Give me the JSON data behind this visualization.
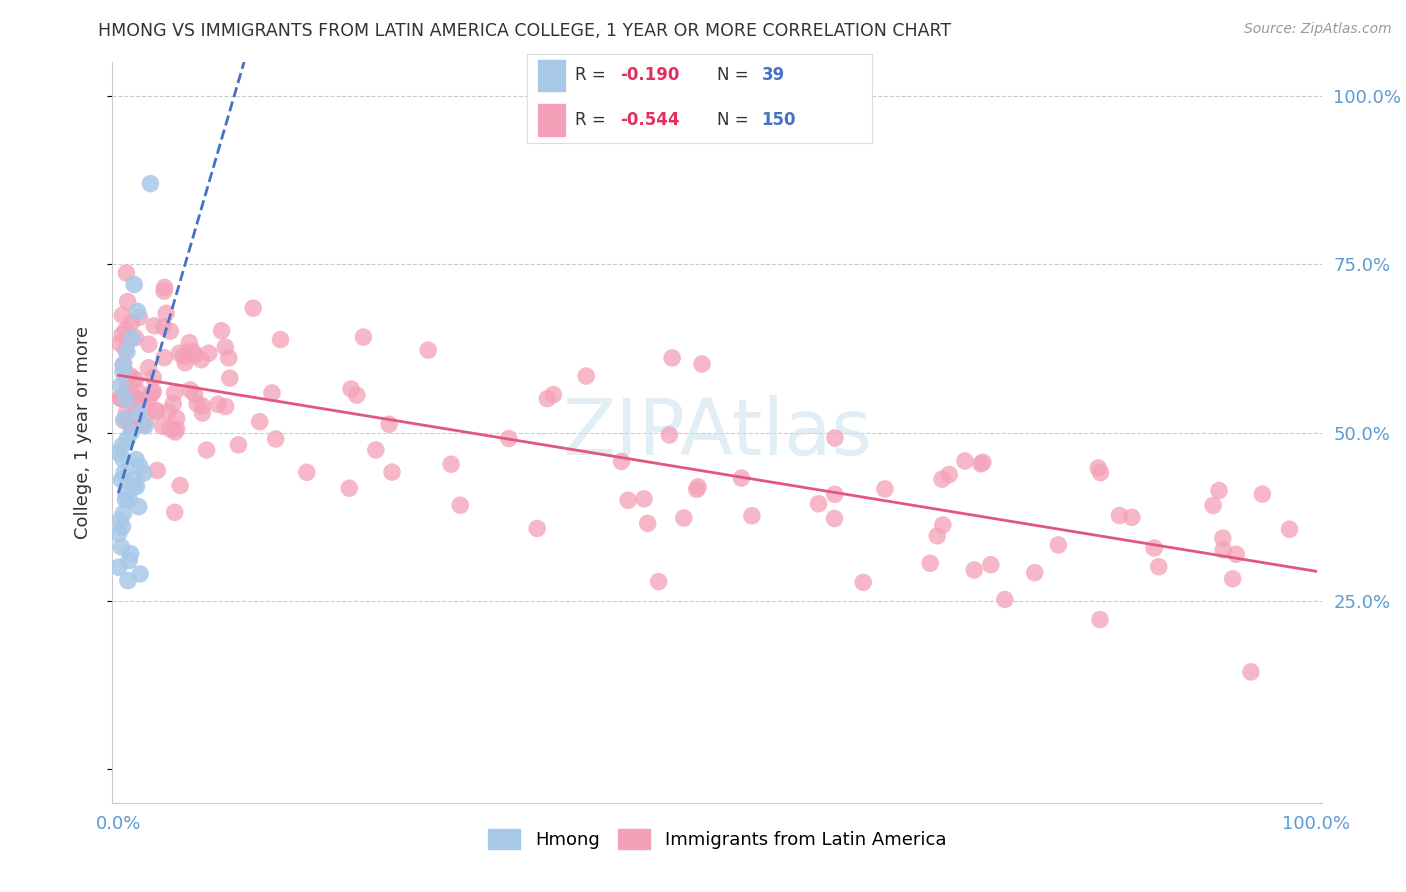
{
  "title": "HMONG VS IMMIGRANTS FROM LATIN AMERICA COLLEGE, 1 YEAR OR MORE CORRELATION CHART",
  "source": "Source: ZipAtlas.com",
  "ylabel": "College, 1 year or more",
  "hmong_R": -0.19,
  "hmong_N": 39,
  "latin_R": -0.544,
  "latin_N": 150,
  "hmong_color": "#a8c8e8",
  "latin_color": "#f4a0b8",
  "hmong_line_color": "#4472c4",
  "latin_line_color": "#e05880",
  "background_color": "#ffffff",
  "watermark_color": "#d0e4f0",
  "grid_color": "#cccccc",
  "tick_color": "#5b9bd5",
  "title_color": "#333333",
  "source_color": "#999999",
  "ylabel_color": "#333333"
}
